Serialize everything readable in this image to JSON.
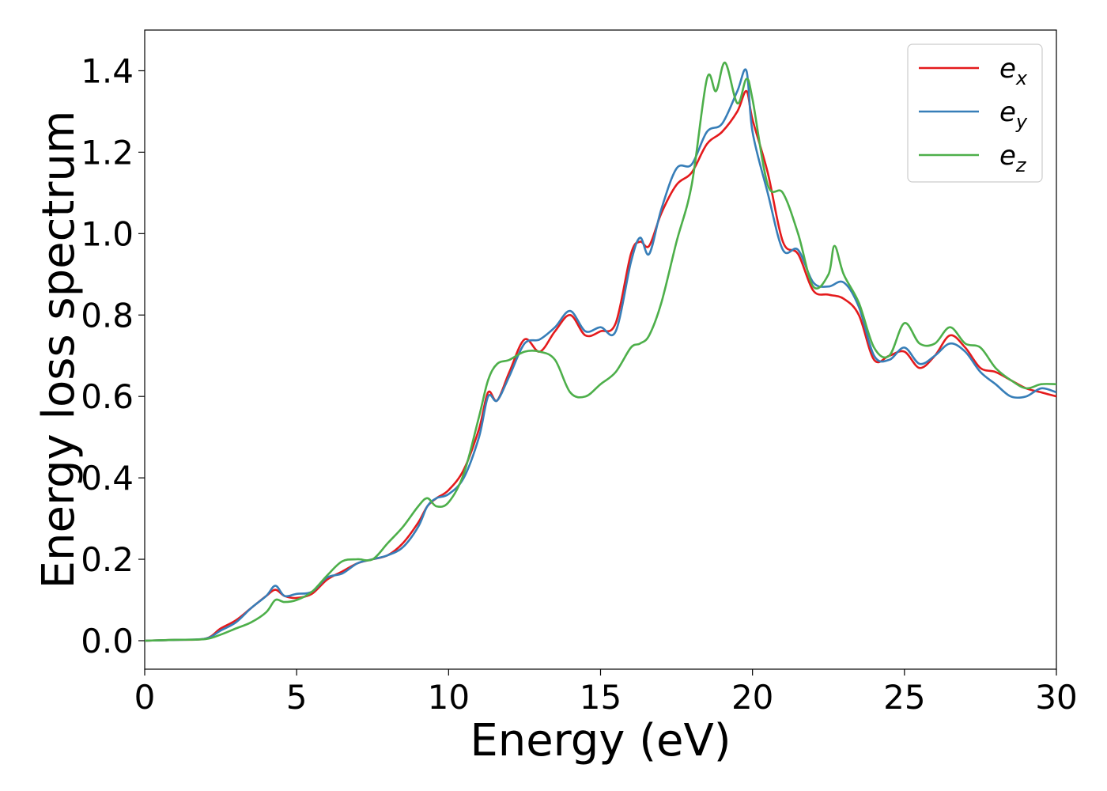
{
  "chart_data": {
    "type": "line",
    "title": "",
    "xlabel": "Energy (eV)",
    "ylabel": "Energy loss spectrum",
    "xlim": [
      0,
      30
    ],
    "ylim": [
      -0.07,
      1.5
    ],
    "xticks": [
      0,
      5,
      10,
      15,
      20,
      25,
      30
    ],
    "xtick_labels": [
      "0",
      "5",
      "10",
      "15",
      "20",
      "25",
      "30"
    ],
    "yticks": [
      0.0,
      0.2,
      0.4,
      0.6,
      0.8,
      1.0,
      1.2,
      1.4
    ],
    "ytick_labels": [
      "0.0",
      "0.2",
      "0.4",
      "0.6",
      "0.8",
      "1.0",
      "1.2",
      "1.4"
    ],
    "grid": false,
    "legend_position": "top-right",
    "series": [
      {
        "name": "e",
        "subscript": "x",
        "color": "#e41a1c",
        "x": [
          0,
          1,
          2,
          2.5,
          3,
          3.5,
          4,
          4.3,
          4.6,
          5,
          5.5,
          6,
          6.5,
          7,
          7.5,
          8,
          8.5,
          9,
          9.3,
          9.6,
          10,
          10.5,
          11,
          11.3,
          11.6,
          12,
          12.5,
          13,
          13.5,
          14,
          14.5,
          15,
          15.5,
          16,
          16.3,
          16.6,
          17,
          17.5,
          18,
          18.5,
          19,
          19.5,
          19.8,
          20,
          20.5,
          21,
          21.5,
          22,
          22.5,
          23,
          23.5,
          24,
          24.5,
          25,
          25.5,
          26,
          26.5,
          27,
          27.5,
          28,
          28.5,
          29,
          29.5,
          30
        ],
        "y": [
          0,
          0.002,
          0.005,
          0.03,
          0.05,
          0.08,
          0.11,
          0.125,
          0.11,
          0.105,
          0.115,
          0.15,
          0.17,
          0.19,
          0.2,
          0.21,
          0.24,
          0.29,
          0.33,
          0.35,
          0.37,
          0.42,
          0.52,
          0.61,
          0.59,
          0.66,
          0.74,
          0.71,
          0.76,
          0.8,
          0.75,
          0.76,
          0.78,
          0.95,
          0.98,
          0.97,
          1.05,
          1.12,
          1.15,
          1.22,
          1.25,
          1.3,
          1.35,
          1.28,
          1.15,
          0.98,
          0.95,
          0.86,
          0.85,
          0.84,
          0.8,
          0.69,
          0.7,
          0.71,
          0.67,
          0.7,
          0.75,
          0.72,
          0.67,
          0.66,
          0.64,
          0.62,
          0.61,
          0.6
        ]
      },
      {
        "name": "e",
        "subscript": "y",
        "color": "#377eb8",
        "x": [
          0,
          1,
          2,
          2.5,
          3,
          3.5,
          4,
          4.3,
          4.6,
          5,
          5.5,
          6,
          6.5,
          7,
          7.5,
          8,
          8.5,
          9,
          9.3,
          9.6,
          10,
          10.5,
          11,
          11.3,
          11.6,
          12,
          12.5,
          13,
          13.5,
          14,
          14.5,
          15,
          15.5,
          16,
          16.3,
          16.6,
          17,
          17.5,
          18,
          18.5,
          19,
          19.5,
          19.8,
          20,
          20.5,
          21,
          21.5,
          22,
          22.5,
          23,
          23.5,
          24,
          24.5,
          25,
          25.5,
          26,
          26.5,
          27,
          27.5,
          28,
          28.5,
          29,
          29.5,
          30
        ],
        "y": [
          0,
          0.002,
          0.005,
          0.025,
          0.045,
          0.08,
          0.11,
          0.135,
          0.11,
          0.115,
          0.12,
          0.155,
          0.165,
          0.19,
          0.2,
          0.21,
          0.23,
          0.28,
          0.33,
          0.35,
          0.36,
          0.4,
          0.5,
          0.6,
          0.59,
          0.65,
          0.73,
          0.74,
          0.77,
          0.81,
          0.76,
          0.77,
          0.76,
          0.93,
          0.99,
          0.95,
          1.06,
          1.16,
          1.17,
          1.25,
          1.27,
          1.35,
          1.4,
          1.25,
          1.1,
          0.96,
          0.96,
          0.88,
          0.87,
          0.88,
          0.82,
          0.7,
          0.69,
          0.72,
          0.68,
          0.7,
          0.73,
          0.71,
          0.66,
          0.63,
          0.6,
          0.6,
          0.62,
          0.61
        ]
      },
      {
        "name": "e",
        "subscript": "z",
        "color": "#4daf4a",
        "x": [
          0,
          1,
          2,
          2.5,
          3,
          3.5,
          4,
          4.3,
          4.6,
          5,
          5.5,
          6,
          6.5,
          7,
          7.5,
          8,
          8.5,
          9,
          9.3,
          9.6,
          10,
          10.5,
          11,
          11.3,
          11.6,
          12,
          12.5,
          13,
          13.5,
          14,
          14.5,
          15,
          15.5,
          16,
          16.3,
          16.6,
          17,
          17.5,
          18,
          18.5,
          18.8,
          19.1,
          19.5,
          19.8,
          20,
          20.5,
          21,
          21.5,
          22,
          22.5,
          22.7,
          23,
          23.5,
          24,
          24.5,
          25,
          25.5,
          26,
          26.5,
          27,
          27.5,
          28,
          28.5,
          29,
          29.5,
          30
        ],
        "y": [
          0,
          0.002,
          0.004,
          0.015,
          0.03,
          0.045,
          0.07,
          0.1,
          0.095,
          0.1,
          0.12,
          0.16,
          0.195,
          0.2,
          0.2,
          0.24,
          0.28,
          0.33,
          0.35,
          0.33,
          0.34,
          0.41,
          0.55,
          0.64,
          0.68,
          0.69,
          0.71,
          0.71,
          0.69,
          0.61,
          0.6,
          0.63,
          0.66,
          0.72,
          0.73,
          0.75,
          0.83,
          0.98,
          1.12,
          1.38,
          1.35,
          1.42,
          1.32,
          1.38,
          1.33,
          1.12,
          1.1,
          1.0,
          0.87,
          0.9,
          0.97,
          0.9,
          0.83,
          0.72,
          0.7,
          0.78,
          0.73,
          0.73,
          0.77,
          0.73,
          0.72,
          0.67,
          0.64,
          0.62,
          0.63,
          0.63
        ]
      }
    ]
  }
}
